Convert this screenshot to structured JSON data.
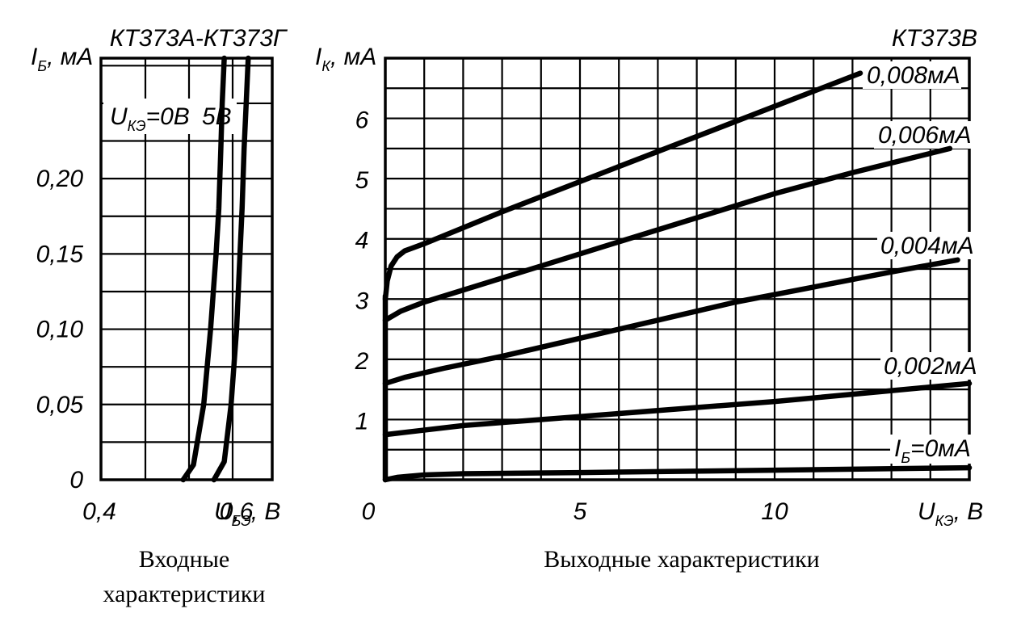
{
  "chart_data": [
    {
      "type": "line",
      "title": "КТ373А-КТ373Г",
      "ylabel_main": "I",
      "ylabel_sub": "Б",
      "ylabel_unit": ", мА",
      "xlabel_main": "U",
      "xlabel_sub": "БЭ",
      "xlabel_unit": ", В",
      "xlim": [
        0.4,
        0.65
      ],
      "ylim": [
        0,
        0.28
      ],
      "x_ticks": [
        {
          "v": 0.4,
          "label": "0,4"
        },
        {
          "v": 0.6,
          "label": "0,6"
        }
      ],
      "y_ticks": [
        {
          "v": 0,
          "label": "0"
        },
        {
          "v": 0.05,
          "label": "0,05"
        },
        {
          "v": 0.1,
          "label": "0,10"
        },
        {
          "v": 0.15,
          "label": "0,15"
        },
        {
          "v": 0.2,
          "label": "0,20"
        }
      ],
      "grid": true,
      "series_label_main": "U",
      "series_label_sub": "КЭ",
      "series": [
        {
          "name": "=0В",
          "x": [
            0.52,
            0.535,
            0.55,
            0.56,
            0.568,
            0.572,
            0.575,
            0.577,
            0.58
          ],
          "y": [
            0,
            0.01,
            0.05,
            0.1,
            0.15,
            0.18,
            0.22,
            0.25,
            0.28
          ]
        },
        {
          "name": "5В",
          "x": [
            0.565,
            0.58,
            0.59,
            0.598,
            0.603,
            0.606,
            0.609,
            0.612,
            0.615
          ],
          "y": [
            0,
            0.012,
            0.05,
            0.1,
            0.15,
            0.18,
            0.22,
            0.25,
            0.28
          ]
        }
      ]
    },
    {
      "type": "line",
      "title": "КТ373В",
      "ylabel_main": "I",
      "ylabel_sub": "К",
      "ylabel_unit": ", мА",
      "xlabel_main": "U",
      "xlabel_sub": "КЭ",
      "xlabel_unit": ", В",
      "xlim": [
        0,
        15
      ],
      "ylim": [
        0,
        7
      ],
      "x_ticks": [
        {
          "v": 0,
          "label": "0"
        },
        {
          "v": 5,
          "label": "5"
        },
        {
          "v": 10,
          "label": "10"
        }
      ],
      "y_ticks": [
        {
          "v": 1,
          "label": "1"
        },
        {
          "v": 2,
          "label": "2"
        },
        {
          "v": 3,
          "label": "3"
        },
        {
          "v": 4,
          "label": "4"
        },
        {
          "v": 5,
          "label": "5"
        },
        {
          "v": 6,
          "label": "6"
        }
      ],
      "grid": true,
      "series": [
        {
          "name": "0,008мА",
          "x": [
            0,
            0.05,
            0.15,
            0.3,
            0.5,
            1,
            3,
            6,
            9,
            12.2
          ],
          "y": [
            3.0,
            3.3,
            3.55,
            3.7,
            3.8,
            3.92,
            4.45,
            5.2,
            5.95,
            6.75
          ]
        },
        {
          "name": "0,006мА",
          "x": [
            0,
            0.4,
            1,
            2,
            4,
            6,
            8,
            10,
            12,
            14.5
          ],
          "y": [
            2.65,
            2.8,
            2.95,
            3.15,
            3.55,
            3.95,
            4.35,
            4.75,
            5.1,
            5.5
          ]
        },
        {
          "name": "0,004мА",
          "x": [
            0,
            0.5,
            1.5,
            3,
            5,
            7,
            9,
            11,
            13,
            14.7
          ],
          "y": [
            1.6,
            1.7,
            1.85,
            2.05,
            2.35,
            2.65,
            2.95,
            3.2,
            3.45,
            3.65
          ]
        },
        {
          "name": "0,002мА",
          "x": [
            0,
            2,
            5,
            10,
            15
          ],
          "y": [
            0.75,
            0.9,
            1.05,
            1.3,
            1.6
          ]
        },
        {
          "name": "=0мА",
          "name_main": "I",
          "name_sub": "Б",
          "x": [
            0,
            0.3,
            1,
            2,
            5,
            10,
            15
          ],
          "y": [
            0,
            0.04,
            0.08,
            0.1,
            0.12,
            0.16,
            0.2
          ]
        }
      ]
    }
  ],
  "captions": {
    "left_line1": "Входные",
    "left_line2": "характеристики",
    "right": "Выходные характеристики"
  }
}
